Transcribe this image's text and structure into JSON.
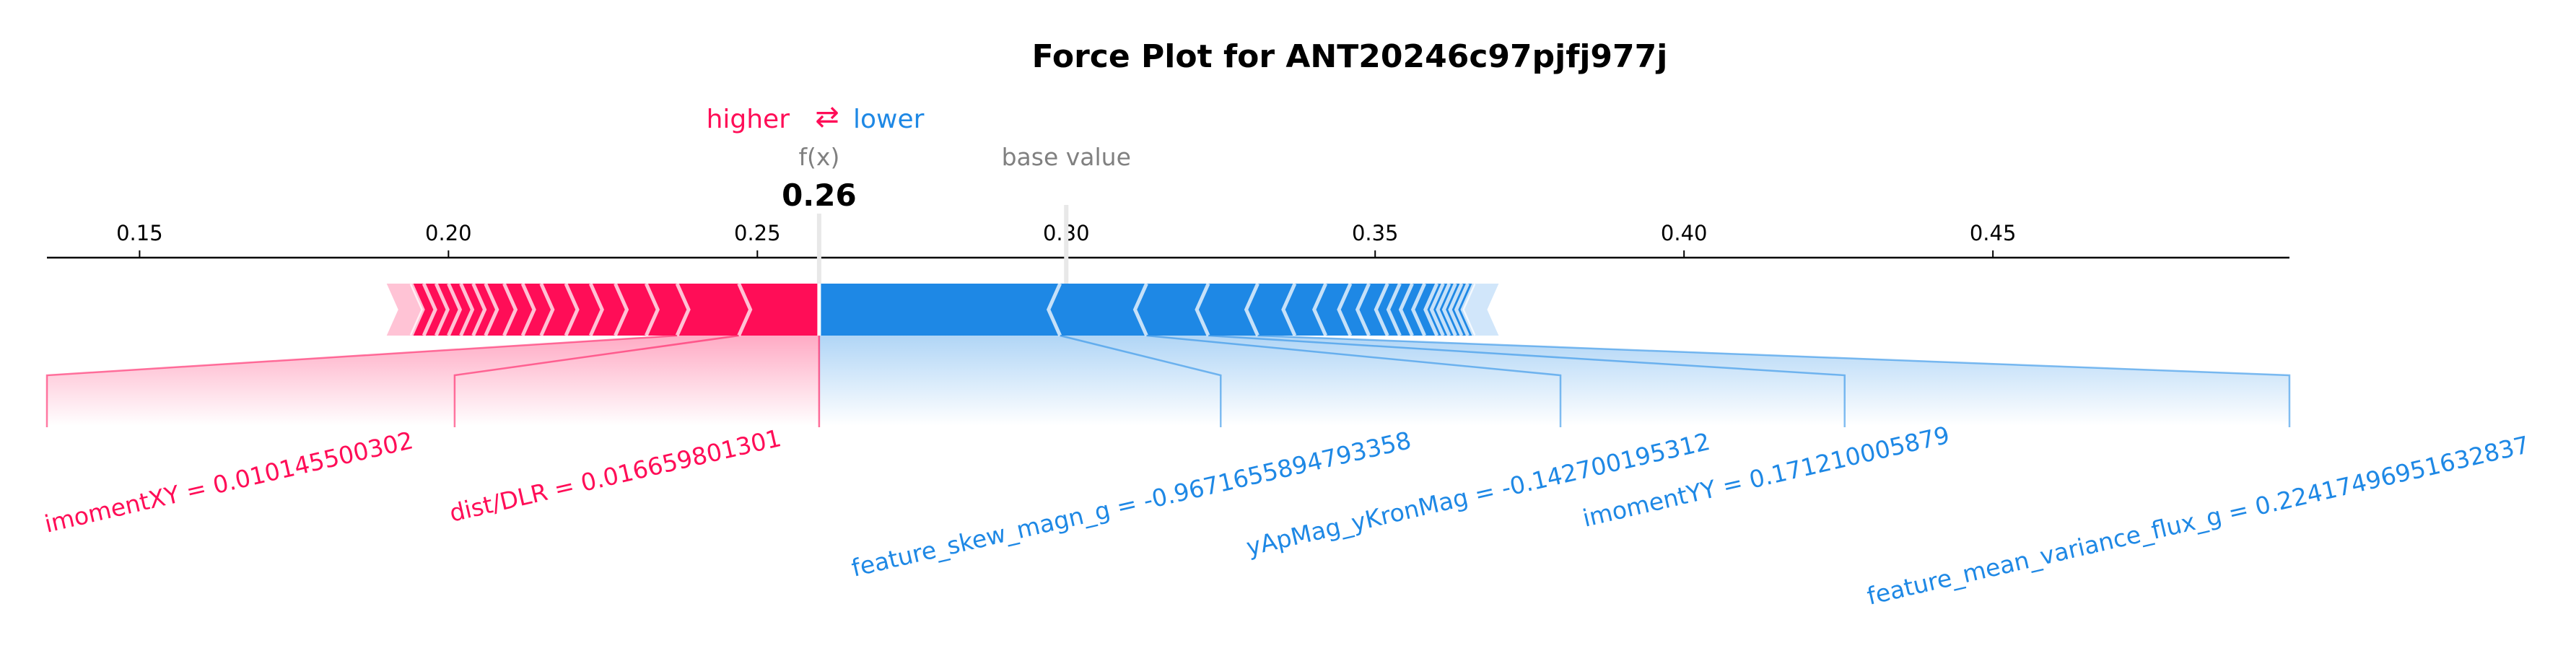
{
  "chart_data": {
    "type": "force",
    "title": "Force Plot for ANT20246c97pjfj977j",
    "legend": {
      "higher": "higher",
      "arrow": "⇄",
      "lower": "lower",
      "placement": "top-center"
    },
    "fx_label": "f(x)",
    "fx_value": 0.26,
    "fx_display": "0.26",
    "base_label": "base value",
    "base_value": 0.3,
    "xlim": [
      0.135,
      0.498
    ],
    "ticks": [
      0.15,
      0.2,
      0.25,
      0.3,
      0.35,
      0.4,
      0.45
    ],
    "tick_labels": [
      "0.15",
      "0.20",
      "0.25",
      "0.30",
      "0.35",
      "0.40",
      "0.45"
    ],
    "positive_range": [
      0.19,
      0.26
    ],
    "negative_range": [
      0.26,
      0.37
    ],
    "positive_features": [
      {
        "label": "imomentXY = 0.010145500302",
        "to": 0.237
      },
      {
        "label": "dist/DLR = 0.016659801301",
        "to": 0.247
      }
    ],
    "negative_features": [
      {
        "label": "feature_skew_magn_g = -0.9671655894793358",
        "to": 0.299
      },
      {
        "label": "yApMag_yKronMag = -0.142700195312",
        "to": 0.313
      },
      {
        "label": "imomentYY = 0.171210005879",
        "to": 0.323
      },
      {
        "label": "feature_mean_variance_flux_g = 0.22417496951632837",
        "to": 0.331
      }
    ],
    "positive_separators": [
      0.194,
      0.196,
      0.198,
      0.2,
      0.202,
      0.204,
      0.206,
      0.209,
      0.212,
      0.215,
      0.219,
      0.223,
      0.227,
      0.232,
      0.237,
      0.247
    ],
    "negative_separators": [
      0.299,
      0.313,
      0.323,
      0.331,
      0.337,
      0.342,
      0.346,
      0.349,
      0.352,
      0.354,
      0.356,
      0.358,
      0.36,
      0.361,
      0.362,
      0.363,
      0.364,
      0.365,
      0.366
    ],
    "colors": {
      "positive": "#ff0d57",
      "negative": "#1e88e5",
      "positive_light": "#ffc3d5",
      "negative_light": "#d1e6fa",
      "axis": "#000000",
      "muted": "#808080"
    }
  }
}
